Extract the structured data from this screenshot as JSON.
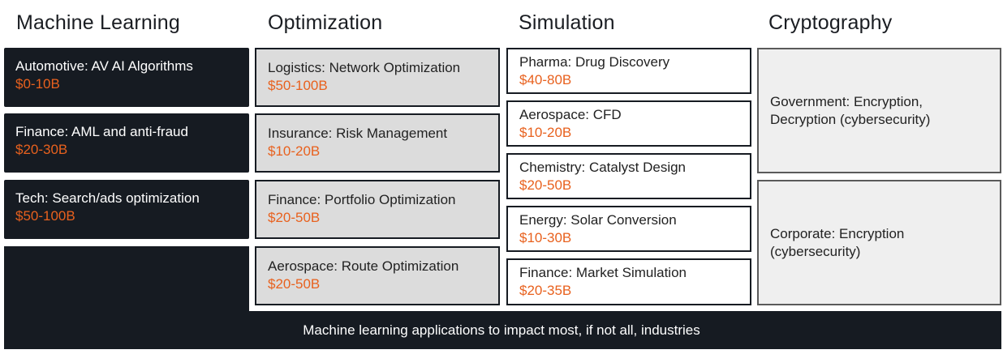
{
  "columns": [
    {
      "title": "Machine Learning"
    },
    {
      "title": "Optimization"
    },
    {
      "title": "Simulation"
    },
    {
      "title": "Cryptography"
    }
  ],
  "ml": [
    {
      "label": "Automotive: AV AI Algorithms",
      "value": "$0-10B"
    },
    {
      "label": "Finance: AML and anti-fraud",
      "value": "$20-30B"
    },
    {
      "label": "Tech: Search/ads optimization",
      "value": "$50-100B"
    }
  ],
  "optimization": [
    {
      "label": "Logistics: Network Optimization",
      "value": "$50-100B"
    },
    {
      "label": "Insurance: Risk Management",
      "value": "$10-20B"
    },
    {
      "label": "Finance: Portfolio Optimization",
      "value": "$20-50B"
    },
    {
      "label": "Aerospace: Route Optimization",
      "value": "$20-50B"
    }
  ],
  "simulation": [
    {
      "label": "Pharma: Drug Discovery",
      "value": "$40-80B"
    },
    {
      "label": "Aerospace: CFD",
      "value": "$10-20B"
    },
    {
      "label": "Chemistry: Catalyst Design",
      "value": "$20-50B"
    },
    {
      "label": "Energy: Solar Conversion",
      "value": "$10-30B"
    },
    {
      "label": "Finance: Market Simulation",
      "value": "$20-35B"
    }
  ],
  "cryptography": [
    {
      "label": "Government: Encryption, Decryption (cybersecurity)"
    },
    {
      "label": "Corporate: Encryption (cybersecurity)"
    }
  ],
  "footer": {
    "text": "Machine learning applications to impact most, if not all, industries"
  },
  "colors": {
    "dark": "#161b22",
    "accent": "#e8611e",
    "gray_fill": "#dcdcdc",
    "crypto_fill": "#efefef"
  }
}
